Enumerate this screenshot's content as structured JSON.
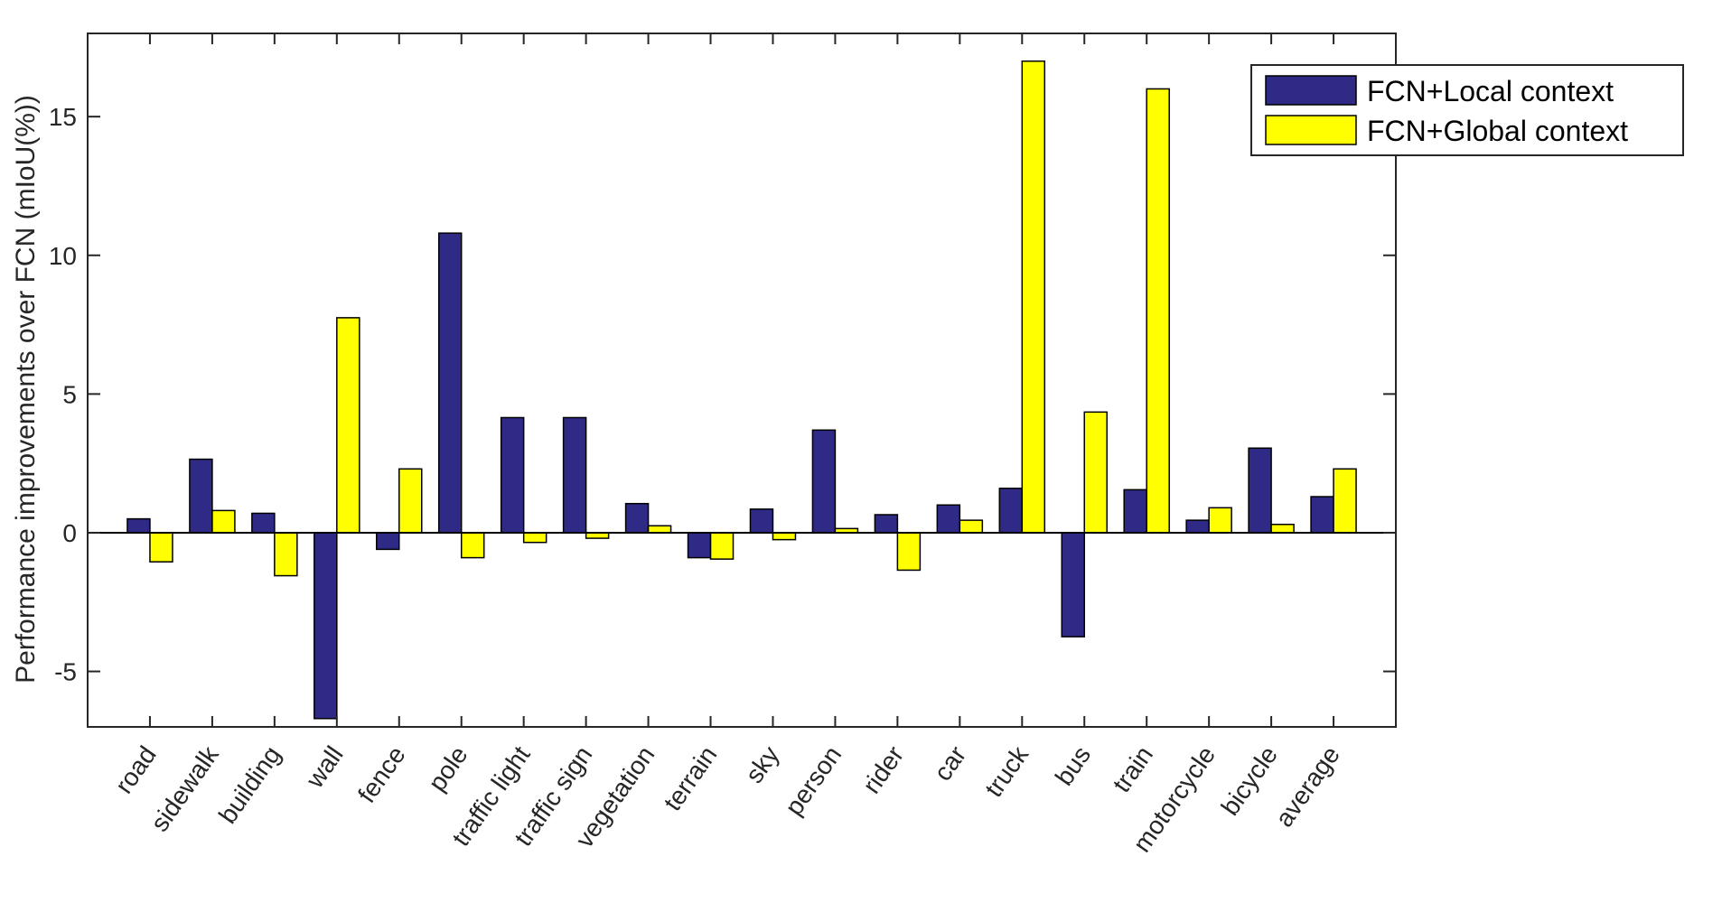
{
  "chart_data": {
    "type": "bar",
    "title": "",
    "xlabel": "",
    "ylabel": "Performance improvements over FCN (mIoU(%))",
    "ylim": [
      -7,
      18
    ],
    "yticks": [
      -5,
      0,
      5,
      10,
      15
    ],
    "ytick_labels": [
      "-5",
      "0",
      "5",
      "10",
      "15"
    ],
    "categories": [
      "road",
      "sidewalk",
      "building",
      "wall",
      "fence",
      "pole",
      "traffic light",
      "traffic sign",
      "vegetation",
      "terrain",
      "sky",
      "person",
      "rider",
      "car",
      "truck",
      "bus",
      "train",
      "motorcycle",
      "bicycle",
      "average"
    ],
    "series": [
      {
        "name": "FCN+Local context",
        "color": "#2e2a85",
        "values": [
          0.5,
          2.65,
          0.7,
          -6.7,
          -0.6,
          10.8,
          4.15,
          4.15,
          1.05,
          -0.9,
          0.85,
          3.7,
          0.65,
          1.0,
          1.6,
          -3.75,
          1.55,
          0.45,
          3.05,
          1.3
        ]
      },
      {
        "name": "FCN+Global context",
        "color": "#ffff00",
        "values": [
          -1.05,
          0.8,
          -1.55,
          7.75,
          2.3,
          -0.9,
          -0.35,
          -0.2,
          0.25,
          -0.95,
          -0.25,
          0.15,
          -1.35,
          0.45,
          17.0,
          4.35,
          16.0,
          0.9,
          0.3,
          2.3
        ]
      }
    ],
    "grid": false,
    "legend_position": "top-right"
  }
}
